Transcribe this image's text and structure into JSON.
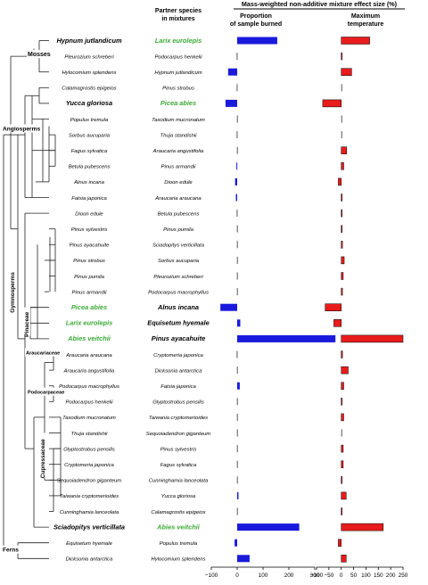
{
  "chart_data": {
    "type": "bar",
    "title": "Mass-weighted non-additive mixture effect size (%)",
    "col_header_left": "Partner species\nin mixtures",
    "panels": [
      {
        "name": "Proportion\nof sample burned",
        "xlim": [
          -100,
          400
        ],
        "ticks": [
          -100,
          0,
          100,
          200,
          300
        ],
        "color": "#1a1adc"
      },
      {
        "name": "Maximum\ntemperature",
        "xlim": [
          -100,
          250
        ],
        "ticks": [
          -100,
          -50,
          0,
          50,
          100,
          150,
          200,
          250
        ],
        "color": "#e81c1c"
      }
    ],
    "rows": [
      {
        "focal": "Hypnum jutlandicum",
        "partner": "Larix eurolepis",
        "burned": 155,
        "temp": 115,
        "focal_bold": true,
        "partner_bold": true,
        "partner_green": true
      },
      {
        "focal": "Pleurozium schreberi",
        "partner": "Podocarpus henkelii",
        "burned": -2,
        "temp": 3
      },
      {
        "focal": "Hylocomium splendens",
        "partner": "Hypnum jutlandicum",
        "burned": -35,
        "temp": 42
      },
      {
        "focal": "Calamagrostis epigeios",
        "partner": "Pinus strobus",
        "burned": -2,
        "temp": 2
      },
      {
        "focal": "Yucca gloriosa",
        "partner": "Picea abies",
        "burned": -45,
        "temp": -75,
        "focal_bold": true,
        "partner_bold": true,
        "partner_green": true
      },
      {
        "focal": "Populus tremula",
        "partner": "Taxodium mucronatum",
        "burned": -1,
        "temp": 2
      },
      {
        "focal": "Sorbus aucuparia",
        "partner": "Thuja standishii",
        "burned": -2,
        "temp": 2
      },
      {
        "focal": "Fagus sylvatica",
        "partner": "Araucaria angustifolia",
        "burned": -1,
        "temp": 22
      },
      {
        "focal": "Betula pubescens",
        "partner": "Pinus armandii",
        "burned": -3,
        "temp": 10
      },
      {
        "focal": "Alnus incana",
        "partner": "Dioon edule",
        "burned": -8,
        "temp": -12
      },
      {
        "focal": "Fatsia japonica",
        "partner": "Araucaria araucana",
        "burned": -5,
        "temp": 3
      },
      {
        "focal": "Dioon edule",
        "partner": "Betula pubescens",
        "burned": -2,
        "temp": 3
      },
      {
        "focal": "Pinus sylvestris",
        "partner": "Pinus pumila",
        "burned": -1,
        "temp": 3
      },
      {
        "focal": "Pinus ayacahuite",
        "partner": "Sciadopitys verticillata",
        "burned": -1,
        "temp": 5
      },
      {
        "focal": "Pinus strobus",
        "partner": "Sorbus aucuparia",
        "burned": -1,
        "temp": 12
      },
      {
        "focal": "Pinus pumila",
        "partner": "Pleurozium schreberi",
        "burned": -1,
        "temp": 8
      },
      {
        "focal": "Pinus armandii",
        "partner": "Podocarpus macrophyllus",
        "burned": -1,
        "temp": 5
      },
      {
        "focal": "Picea abies",
        "partner": "Alnus incana",
        "burned": -65,
        "temp": -65,
        "focal_bold": true,
        "focal_green": true,
        "partner_bold": true
      },
      {
        "focal": "Larix eurolepis",
        "partner": "Equisetum hyemale",
        "burned": 12,
        "temp": -30,
        "focal_bold": true,
        "focal_green": true,
        "partner_bold": true
      },
      {
        "focal": "Abies veitchii",
        "partner": "Pinus ayacahuite",
        "burned": 380,
        "temp": 250,
        "focal_bold": true,
        "focal_green": true,
        "partner_bold": true
      },
      {
        "focal": "Araucaria araucana",
        "partner": "Cryptomeria japonica",
        "burned": -2,
        "temp": 5
      },
      {
        "focal": "Araucaria angustifolia",
        "partner": "Dicksonia antarctica",
        "burned": -1,
        "temp": 28
      },
      {
        "focal": "Podocarpus macrophyllus",
        "partner": "Fatsia japonica",
        "burned": 10,
        "temp": 10
      },
      {
        "focal": "Podocarpus henkelii",
        "partner": "Glyptostrobus pensilis",
        "burned": -1,
        "temp": 3
      },
      {
        "focal": "Taxodium mucronatum",
        "partner": "Taiwania cryptomerioides",
        "burned": -1,
        "temp": 10
      },
      {
        "focal": "Thuja standishii",
        "partner": "Sequoiadendron giganteum",
        "burned": -1,
        "temp": 2
      },
      {
        "focal": "Glyptostrobus pensilis",
        "partner": "Pinus sylvestris",
        "burned": -1,
        "temp": 8
      },
      {
        "focal": "Cryptomeria japonica",
        "partner": "Fagus sylvatica",
        "burned": -1,
        "temp": 8
      },
      {
        "focal": "Sequoiadendron giganteum",
        "partner": "Cunninghamia lanceolata",
        "burned": -1,
        "temp": 3
      },
      {
        "focal": "Taiwania cryptomerioides",
        "partner": "Yucca gloriosa",
        "burned": 5,
        "temp": 20
      },
      {
        "focal": "Cunninghamia lanceolata",
        "partner": "Calamagrostis epigeios",
        "burned": -1,
        "temp": 3
      },
      {
        "focal": "Sciadopitys verticillata",
        "partner": "Abies veitchii",
        "burned": 240,
        "temp": 170,
        "focal_bold": true,
        "partner_bold": true,
        "partner_green": true
      },
      {
        "focal": "Equisetum hyemale",
        "partner": "Populus tremula",
        "burned": -10,
        "temp": -12
      },
      {
        "focal": "Dicksonia antarctica",
        "partner": "Hylocomium splendens",
        "burned": 48,
        "temp": 20
      }
    ],
    "clades": [
      "Mosses",
      "Angiosperms",
      "Gymnosperms",
      "Pinaceae",
      "Araucariaceae",
      "Podocarpaceae",
      "Cupressaceae",
      "Ferns"
    ],
    "colors": {
      "green_label": "#3aaa35",
      "tree": "#222222"
    }
  }
}
